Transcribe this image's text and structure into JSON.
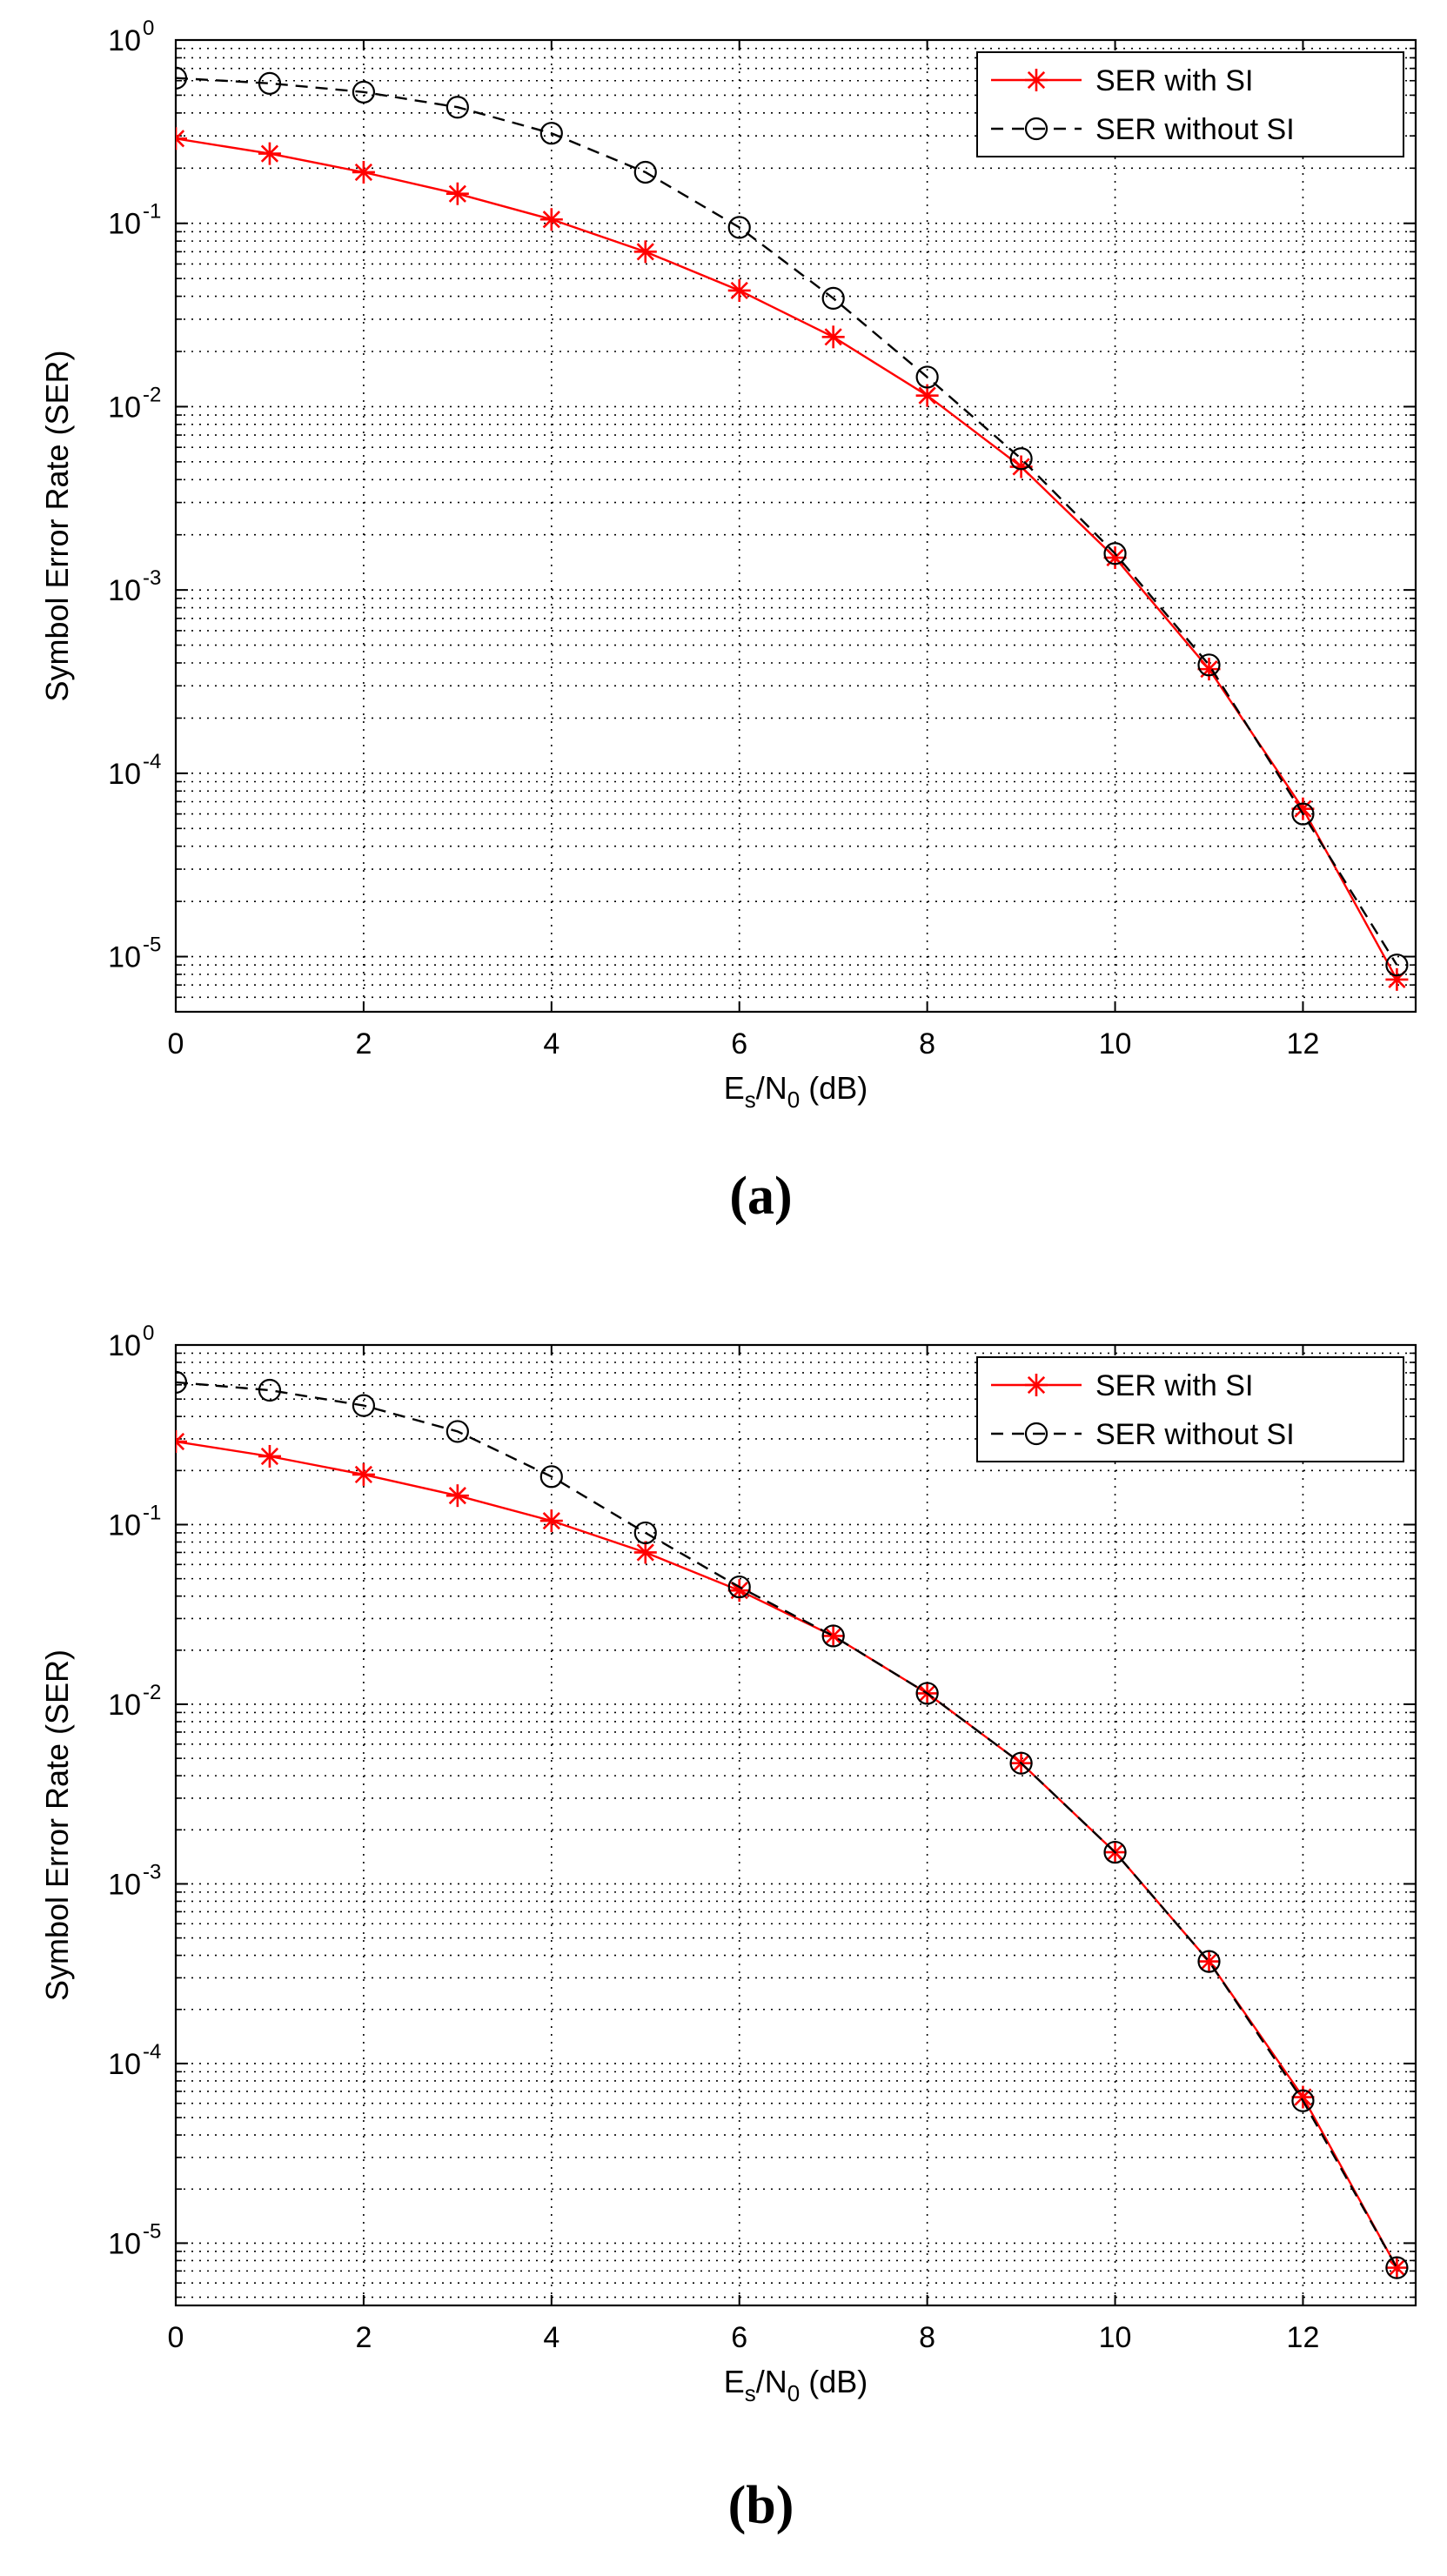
{
  "chart_data": [
    {
      "type": "line",
      "caption": "(a)",
      "xlabel": "Es/N0 (dB)",
      "xlabel_parts": {
        "main": "E",
        "sub1": "s",
        "mid": "/N",
        "sub2": "0",
        "tail": " (dB)"
      },
      "ylabel": "Symbol Error Rate (SER)",
      "xscale": "linear",
      "yscale": "log",
      "xlim": [
        0,
        13.2
      ],
      "ylim": [
        5e-06,
        1
      ],
      "xticks": [
        0,
        2,
        4,
        6,
        8,
        10,
        12
      ],
      "xtick_labels": [
        "0",
        "2",
        "4",
        "6",
        "8",
        "10",
        "12"
      ],
      "yticks": [
        1e-05,
        0.0001,
        0.001,
        0.01,
        0.1,
        1
      ],
      "ytick_labels": [
        {
          "base": "10",
          "exp": "-5"
        },
        {
          "base": "10",
          "exp": "-4"
        },
        {
          "base": "10",
          "exp": "-3"
        },
        {
          "base": "10",
          "exp": "-2"
        },
        {
          "base": "10",
          "exp": "-1"
        },
        {
          "base": "10",
          "exp": "0"
        }
      ],
      "grid": true,
      "legend_position": "top-right",
      "series": [
        {
          "name": "SER with SI",
          "color": "#ff0000",
          "line_style": "solid",
          "marker": "asterisk",
          "x": [
            0,
            1,
            2,
            3,
            4,
            5,
            6,
            7,
            8,
            9,
            10,
            11,
            12,
            13
          ],
          "values": [
            0.29,
            0.24,
            0.19,
            0.145,
            0.105,
            0.07,
            0.043,
            0.024,
            0.0115,
            0.0047,
            0.0015,
            0.00037,
            6.4e-05,
            7.5e-06
          ]
        },
        {
          "name": "SER without SI",
          "color": "#000000",
          "line_style": "dashed",
          "marker": "circle",
          "x": [
            0,
            1,
            2,
            3,
            4,
            5,
            6,
            7,
            8,
            9,
            10,
            11,
            12,
            13
          ],
          "values": [
            0.62,
            0.58,
            0.52,
            0.43,
            0.31,
            0.19,
            0.095,
            0.039,
            0.0145,
            0.0052,
            0.00158,
            0.00039,
            6e-05,
            9e-06
          ]
        }
      ]
    },
    {
      "type": "line",
      "caption": "(b)",
      "xlabel": "Es/N0 (dB)",
      "xlabel_parts": {
        "main": "E",
        "sub1": "s",
        "mid": "/N",
        "sub2": "0",
        "tail": " (dB)"
      },
      "ylabel": "Symbol Error Rate (SER)",
      "xscale": "linear",
      "yscale": "log",
      "xlim": [
        0,
        13.2
      ],
      "ylim": [
        4.5e-06,
        1
      ],
      "xticks": [
        0,
        2,
        4,
        6,
        8,
        10,
        12
      ],
      "xtick_labels": [
        "0",
        "2",
        "4",
        "6",
        "8",
        "10",
        "12"
      ],
      "yticks": [
        1e-05,
        0.0001,
        0.001,
        0.01,
        0.1,
        1
      ],
      "ytick_labels": [
        {
          "base": "10",
          "exp": "-5"
        },
        {
          "base": "10",
          "exp": "-4"
        },
        {
          "base": "10",
          "exp": "-3"
        },
        {
          "base": "10",
          "exp": "-2"
        },
        {
          "base": "10",
          "exp": "-1"
        },
        {
          "base": "10",
          "exp": "0"
        }
      ],
      "grid": true,
      "legend_position": "top-right",
      "series": [
        {
          "name": "SER with SI",
          "color": "#ff0000",
          "line_style": "solid",
          "marker": "asterisk",
          "x": [
            0,
            1,
            2,
            3,
            4,
            5,
            6,
            7,
            8,
            9,
            10,
            11,
            12,
            13
          ],
          "values": [
            0.29,
            0.24,
            0.19,
            0.145,
            0.105,
            0.07,
            0.043,
            0.024,
            0.0115,
            0.0047,
            0.0015,
            0.00037,
            6.5e-05,
            7.3e-06
          ]
        },
        {
          "name": "SER without SI",
          "color": "#000000",
          "line_style": "dashed",
          "marker": "circle",
          "x": [
            0,
            1,
            2,
            3,
            4,
            5,
            6,
            7,
            8,
            9,
            10,
            11,
            12,
            13
          ],
          "values": [
            0.62,
            0.56,
            0.46,
            0.33,
            0.185,
            0.09,
            0.045,
            0.024,
            0.0115,
            0.0047,
            0.0015,
            0.00037,
            6.2e-05,
            7.3e-06
          ]
        }
      ]
    }
  ]
}
